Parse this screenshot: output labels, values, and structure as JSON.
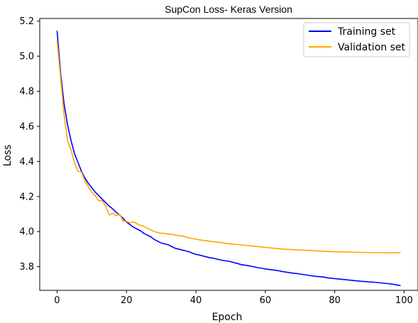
{
  "chart_data": {
    "type": "line",
    "title": "SupCon Loss- Keras Version",
    "xlabel": "Epoch",
    "ylabel": "Loss",
    "xlim": [
      -5,
      104
    ],
    "ylim": [
      3.665,
      5.215
    ],
    "xticks": [
      0,
      20,
      40,
      60,
      80,
      100
    ],
    "yticks": [
      3.8,
      4.0,
      4.2,
      4.4,
      4.6,
      4.8,
      5.0,
      5.2
    ],
    "ytick_labels": [
      "3.8",
      "4.0",
      "4.2",
      "4.4",
      "4.6",
      "4.8",
      "5.0",
      "5.2"
    ],
    "grid": false,
    "legend_position": "top-right",
    "series": [
      {
        "name": "Training set",
        "color": "#0000ff",
        "values": [
          5.145,
          4.905,
          4.73,
          4.61,
          4.52,
          4.445,
          4.395,
          4.345,
          4.305,
          4.275,
          4.25,
          4.225,
          4.205,
          4.185,
          4.165,
          4.145,
          4.13,
          4.11,
          4.095,
          4.075,
          4.055,
          4.04,
          4.025,
          4.015,
          4.005,
          3.99,
          3.98,
          3.97,
          3.955,
          3.945,
          3.935,
          3.93,
          3.925,
          3.915,
          3.905,
          3.9,
          3.895,
          3.89,
          3.885,
          3.877,
          3.87,
          3.866,
          3.861,
          3.856,
          3.851,
          3.848,
          3.843,
          3.839,
          3.835,
          3.832,
          3.829,
          3.823,
          3.818,
          3.812,
          3.809,
          3.806,
          3.802,
          3.798,
          3.794,
          3.791,
          3.787,
          3.784,
          3.782,
          3.779,
          3.776,
          3.772,
          3.769,
          3.766,
          3.763,
          3.761,
          3.758,
          3.755,
          3.752,
          3.749,
          3.746,
          3.744,
          3.742,
          3.74,
          3.736,
          3.734,
          3.732,
          3.73,
          3.728,
          3.726,
          3.724,
          3.722,
          3.72,
          3.718,
          3.716,
          3.715,
          3.713,
          3.712,
          3.71,
          3.708,
          3.706,
          3.704,
          3.702,
          3.699,
          3.695,
          3.692
        ]
      },
      {
        "name": "Validation set",
        "color": "#ffa500",
        "values": [
          5.09,
          4.88,
          4.67,
          4.52,
          4.465,
          4.395,
          4.345,
          4.34,
          4.29,
          4.255,
          4.225,
          4.205,
          4.175,
          4.175,
          4.145,
          4.095,
          4.105,
          4.09,
          4.1,
          4.06,
          4.058,
          4.05,
          4.055,
          4.045,
          4.035,
          4.03,
          4.02,
          4.01,
          4.0,
          3.995,
          3.99,
          3.99,
          3.985,
          3.985,
          3.98,
          3.978,
          3.975,
          3.97,
          3.965,
          3.96,
          3.957,
          3.953,
          3.95,
          3.948,
          3.945,
          3.942,
          3.94,
          3.938,
          3.935,
          3.932,
          3.93,
          3.928,
          3.926,
          3.924,
          3.922,
          3.92,
          3.918,
          3.916,
          3.914,
          3.912,
          3.91,
          3.908,
          3.906,
          3.904,
          3.902,
          3.9,
          3.899,
          3.898,
          3.897,
          3.896,
          3.895,
          3.894,
          3.893,
          3.892,
          3.891,
          3.89,
          3.889,
          3.888,
          3.887,
          3.886,
          3.885,
          3.885,
          3.884,
          3.884,
          3.883,
          3.883,
          3.882,
          3.882,
          3.881,
          3.881,
          3.88,
          3.88,
          3.88,
          3.88,
          3.879,
          3.879,
          3.879,
          3.879,
          3.879,
          3.88
        ]
      }
    ]
  }
}
